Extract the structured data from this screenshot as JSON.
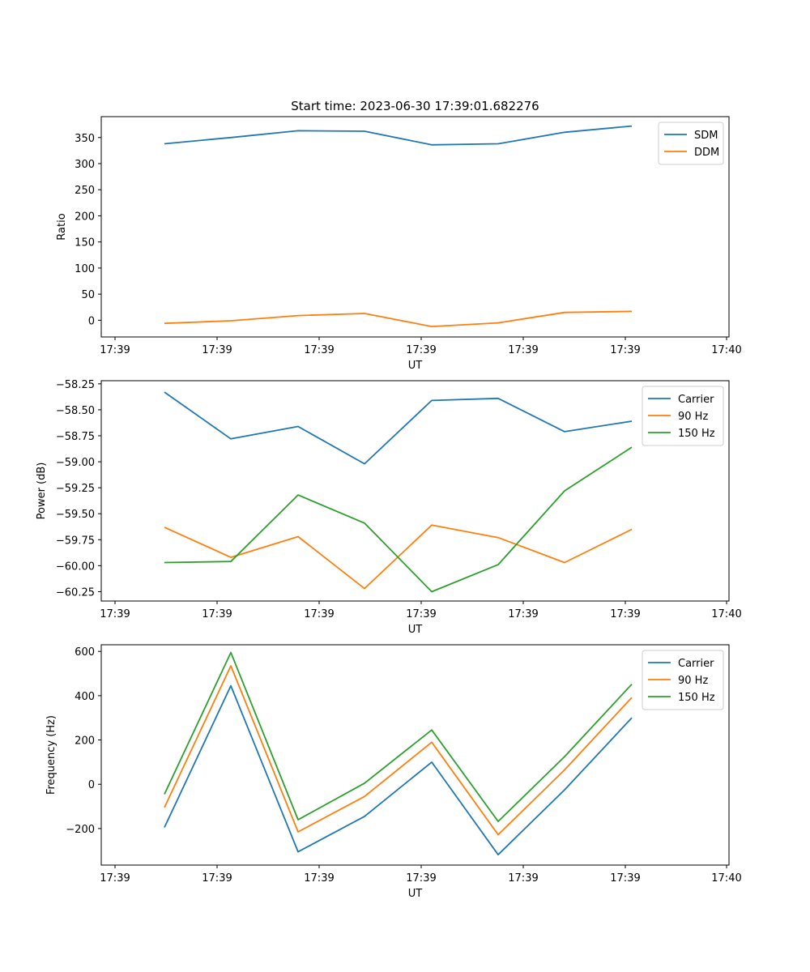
{
  "figure": {
    "title": "Start time: 2023-06-30 17:39:01.682276"
  },
  "chart_data": [
    {
      "type": "line",
      "title": "Start time: 2023-06-30 17:39:01.682276",
      "xlabel": "UT",
      "ylabel": "Ratio",
      "x_tick_labels": [
        "17:39",
        "17:39",
        "17:39",
        "17:39",
        "17:39",
        "17:39",
        "17:40"
      ],
      "y_ticks": [
        0,
        50,
        100,
        150,
        200,
        250,
        300,
        350
      ],
      "ylim": [
        -32,
        390
      ],
      "grid": false,
      "legend_position": "top-right",
      "series": [
        {
          "name": "SDM",
          "color": "#1f77b4",
          "values": [
            338,
            350,
            363,
            362,
            336,
            338,
            360,
            372
          ]
        },
        {
          "name": "DDM",
          "color": "#ff7f0e",
          "values": [
            -6,
            -1,
            9,
            13,
            -12,
            -5,
            15,
            17
          ]
        }
      ]
    },
    {
      "type": "line",
      "title": "",
      "xlabel": "UT",
      "ylabel": "Power (dB)",
      "x_tick_labels": [
        "17:39",
        "17:39",
        "17:39",
        "17:39",
        "17:39",
        "17:39",
        "17:40"
      ],
      "y_ticks": [
        -60.25,
        -60.0,
        -59.75,
        -59.5,
        -59.25,
        -59.0,
        -58.75,
        -58.5,
        -58.25
      ],
      "y_tick_labels": [
        "−60.25",
        "−60.00",
        "−59.75",
        "−59.50",
        "−59.25",
        "−59.00",
        "−58.75",
        "−58.50",
        "−58.25"
      ],
      "ylim": [
        -60.34,
        -58.22
      ],
      "grid": false,
      "legend_position": "top-right",
      "series": [
        {
          "name": "Carrier",
          "color": "#1f77b4",
          "values": [
            -58.33,
            -58.78,
            -58.66,
            -59.02,
            -58.41,
            -58.39,
            -58.71,
            -58.61
          ]
        },
        {
          "name": "90 Hz",
          "color": "#ff7f0e",
          "values": [
            -59.63,
            -59.92,
            -59.72,
            -60.22,
            -59.61,
            -59.73,
            -59.97,
            -59.65
          ]
        },
        {
          "name": "150 Hz",
          "color": "#2ca02c",
          "values": [
            -59.97,
            -59.96,
            -59.32,
            -59.59,
            -60.25,
            -59.99,
            -59.28,
            -58.86
          ]
        }
      ]
    },
    {
      "type": "line",
      "title": "",
      "xlabel": "UT",
      "ylabel": "Frequency (Hz)",
      "x_tick_labels": [
        "17:39",
        "17:39",
        "17:39",
        "17:39",
        "17:39",
        "17:39",
        "17:40"
      ],
      "y_ticks": [
        -200,
        0,
        200,
        400,
        600
      ],
      "y_tick_labels": [
        "−200",
        "0",
        "200",
        "400",
        "600"
      ],
      "ylim": [
        -365,
        630
      ],
      "grid": false,
      "legend_position": "top-right",
      "series": [
        {
          "name": "Carrier",
          "color": "#1f77b4",
          "values": [
            -195,
            445,
            -305,
            -145,
            100,
            -318,
            -25,
            300
          ]
        },
        {
          "name": "90 Hz",
          "color": "#ff7f0e",
          "values": [
            -105,
            535,
            -215,
            -55,
            190,
            -228,
            65,
            392
          ]
        },
        {
          "name": "150 Hz",
          "color": "#2ca02c",
          "values": [
            -45,
            595,
            -160,
            5,
            245,
            -168,
            125,
            452
          ]
        }
      ]
    }
  ]
}
